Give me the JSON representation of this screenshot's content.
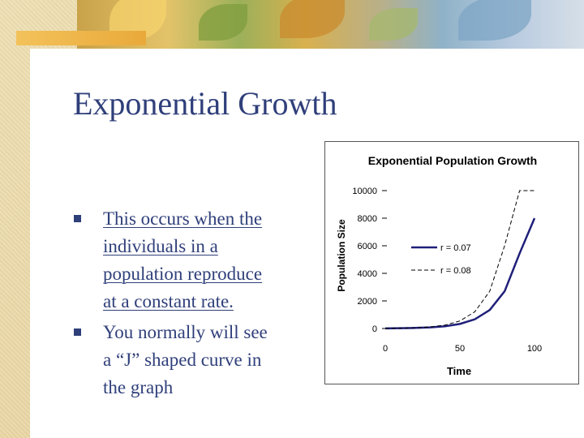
{
  "slide": {
    "title": "Exponential Growth",
    "bullets": [
      {
        "lines": [
          "This occurs when the",
          "individuals in a",
          "population reproduce",
          "at a constant rate."
        ],
        "underlined": true
      },
      {
        "lines": [
          "You normally will see",
          "a “J” shaped curve in",
          "the graph"
        ],
        "underlined": false
      }
    ],
    "colors": {
      "text": "#2f3f7a",
      "panel": "#ffffff"
    }
  },
  "chart_data": {
    "type": "line",
    "title": "Exponential Population Growth",
    "xlabel": "Time",
    "ylabel": "Population Size",
    "xlim": [
      0,
      100
    ],
    "ylim": [
      0,
      10000
    ],
    "x_ticks": [
      "0",
      "50",
      "100"
    ],
    "y_ticks": [
      "0",
      "2000",
      "4000",
      "6000",
      "8000",
      "10000"
    ],
    "grid": false,
    "legend_position": "center-right",
    "series": [
      {
        "name": "r = 0.07",
        "style": "solid",
        "color": "#1f1f7a",
        "x": [
          0,
          10,
          20,
          30,
          40,
          50,
          60,
          70,
          80,
          90,
          100
        ],
        "y": [
          10,
          20,
          41,
          82,
          164,
          331,
          667,
          1343,
          2704,
          5446,
          8000
        ]
      },
      {
        "name": "r = 0.08",
        "style": "dashed",
        "color": "#000000",
        "x": [
          0,
          10,
          20,
          30,
          40,
          50,
          60,
          70,
          80,
          90,
          100
        ],
        "y": [
          10,
          22,
          50,
          110,
          245,
          546,
          1215,
          2704,
          6017,
          10000,
          10000
        ]
      }
    ]
  }
}
